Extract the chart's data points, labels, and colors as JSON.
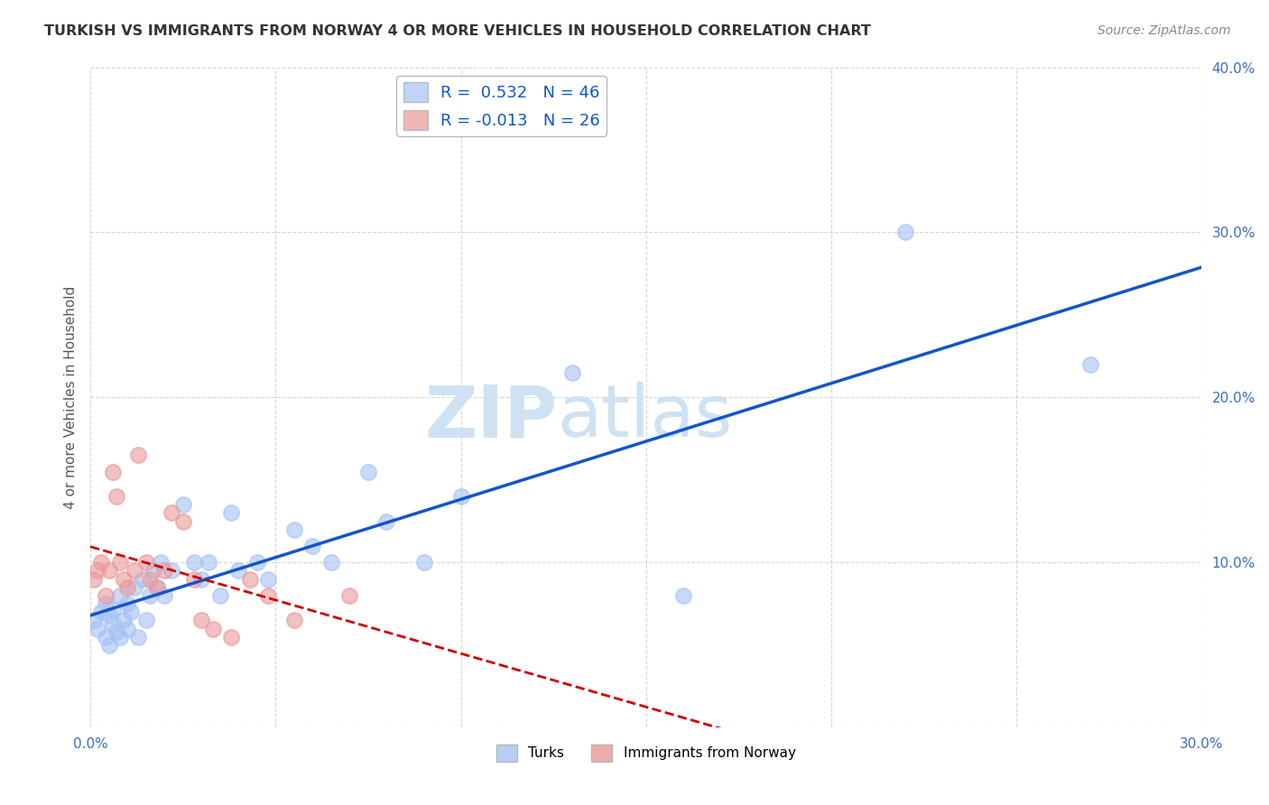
{
  "title": "TURKISH VS IMMIGRANTS FROM NORWAY 4 OR MORE VEHICLES IN HOUSEHOLD CORRELATION CHART",
  "source": "Source: ZipAtlas.com",
  "ylabel": "4 or more Vehicles in Household",
  "x_min": 0.0,
  "x_max": 0.3,
  "y_min": 0.0,
  "y_max": 0.4,
  "x_ticks": [
    0.0,
    0.05,
    0.1,
    0.15,
    0.2,
    0.25,
    0.3
  ],
  "y_ticks": [
    0.0,
    0.1,
    0.2,
    0.3,
    0.4
  ],
  "turks_color": "#a4c2f4",
  "norway_color": "#ea9999",
  "turks_line_color": "#1155cc",
  "norway_line_color": "#cc0000",
  "turks_R": 0.532,
  "turks_N": 46,
  "norway_R": -0.013,
  "norway_N": 26,
  "turks_x": [
    0.001,
    0.002,
    0.003,
    0.004,
    0.004,
    0.005,
    0.005,
    0.006,
    0.006,
    0.007,
    0.008,
    0.008,
    0.009,
    0.01,
    0.01,
    0.011,
    0.012,
    0.013,
    0.014,
    0.015,
    0.016,
    0.017,
    0.018,
    0.019,
    0.02,
    0.022,
    0.025,
    0.028,
    0.03,
    0.032,
    0.035,
    0.038,
    0.04,
    0.045,
    0.048,
    0.055,
    0.06,
    0.065,
    0.075,
    0.08,
    0.09,
    0.1,
    0.13,
    0.16,
    0.22,
    0.27
  ],
  "turks_y": [
    0.065,
    0.06,
    0.07,
    0.055,
    0.075,
    0.068,
    0.05,
    0.072,
    0.063,
    0.058,
    0.08,
    0.055,
    0.065,
    0.075,
    0.06,
    0.07,
    0.085,
    0.055,
    0.09,
    0.065,
    0.08,
    0.095,
    0.085,
    0.1,
    0.08,
    0.095,
    0.135,
    0.1,
    0.09,
    0.1,
    0.08,
    0.13,
    0.095,
    0.1,
    0.09,
    0.12,
    0.11,
    0.1,
    0.155,
    0.125,
    0.1,
    0.14,
    0.215,
    0.08,
    0.3,
    0.22
  ],
  "norway_x": [
    0.001,
    0.002,
    0.003,
    0.004,
    0.005,
    0.006,
    0.007,
    0.008,
    0.009,
    0.01,
    0.012,
    0.013,
    0.015,
    0.016,
    0.018,
    0.02,
    0.022,
    0.025,
    0.028,
    0.03,
    0.033,
    0.038,
    0.043,
    0.048,
    0.055,
    0.07
  ],
  "norway_y": [
    0.09,
    0.095,
    0.1,
    0.08,
    0.095,
    0.155,
    0.14,
    0.1,
    0.09,
    0.085,
    0.095,
    0.165,
    0.1,
    0.09,
    0.085,
    0.095,
    0.13,
    0.125,
    0.09,
    0.065,
    0.06,
    0.055,
    0.09,
    0.08,
    0.065,
    0.08
  ],
  "background_color": "#ffffff",
  "grid_color": "#cccccc",
  "watermark_zip": "ZIP",
  "watermark_atlas": "atlas",
  "watermark_color": "#cfe2f3"
}
